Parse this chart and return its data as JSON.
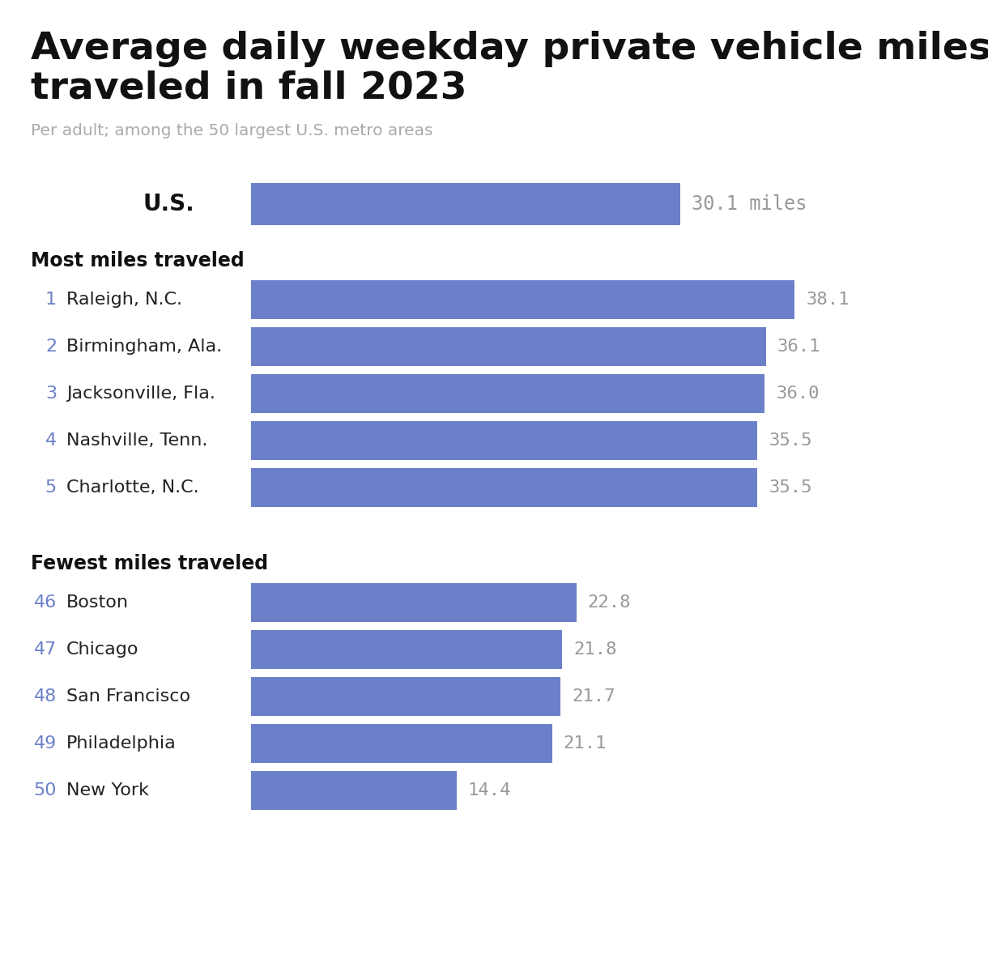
{
  "title_line1": "Average daily weekday private vehicle miles",
  "title_line2": "traveled in fall 2023",
  "subtitle": "Per adult; among the 50 largest U.S. metro areas",
  "background_color": "#ffffff",
  "bar_color": "#6b80c9",
  "number_color": "#999999",
  "rank_color": "#6b80c9",
  "city_color": "#222222",
  "us_label": "U.S.",
  "us_value": 30.1,
  "us_label_suffix": " miles",
  "section1_header": "Most miles traveled",
  "section2_header": "Fewest miles traveled",
  "most": [
    {
      "rank": 1,
      "city": "Raleigh, N.C.",
      "value": 38.1
    },
    {
      "rank": 2,
      "city": "Birmingham, Ala.",
      "value": 36.1
    },
    {
      "rank": 3,
      "city": "Jacksonville, Fla.",
      "value": 36.0
    },
    {
      "rank": 4,
      "city": "Nashville, Tenn.",
      "value": 35.5
    },
    {
      "rank": 5,
      "city": "Charlotte, N.C.",
      "value": 35.5
    }
  ],
  "fewest": [
    {
      "rank": 46,
      "city": "Boston",
      "value": 22.8
    },
    {
      "rank": 47,
      "city": "Chicago",
      "value": 21.8
    },
    {
      "rank": 48,
      "city": "San Francisco",
      "value": 21.7
    },
    {
      "rank": 49,
      "city": "Philadelphia",
      "value": 21.1
    },
    {
      "rank": 50,
      "city": "New York",
      "value": 14.4
    }
  ],
  "data_max": 42,
  "figwidth": 12.2,
  "figheight": 11.94,
  "dpi": 100
}
